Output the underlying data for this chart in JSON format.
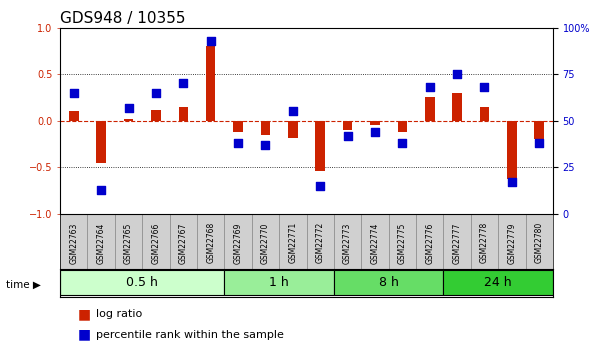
{
  "title": "GDS948 / 10355",
  "samples": [
    "GSM22763",
    "GSM22764",
    "GSM22765",
    "GSM22766",
    "GSM22767",
    "GSM22768",
    "GSM22769",
    "GSM22770",
    "GSM22771",
    "GSM22772",
    "GSM22773",
    "GSM22774",
    "GSM22775",
    "GSM22776",
    "GSM22777",
    "GSM22778",
    "GSM22779",
    "GSM22780"
  ],
  "log_ratio": [
    0.1,
    -0.45,
    0.02,
    0.12,
    0.15,
    0.8,
    -0.12,
    -0.15,
    -0.18,
    -0.54,
    -0.1,
    -0.05,
    -0.12,
    0.25,
    0.3,
    0.15,
    -0.62,
    -0.2
  ],
  "percentile": [
    0.65,
    0.13,
    0.57,
    0.65,
    0.7,
    0.93,
    0.38,
    0.37,
    0.55,
    0.15,
    0.42,
    0.44,
    0.38,
    0.68,
    0.75,
    0.68,
    0.17,
    0.38
  ],
  "groups": [
    {
      "label": "0.5 h",
      "start": 0,
      "end": 6,
      "color": "#ccffcc"
    },
    {
      "label": "1 h",
      "start": 6,
      "end": 10,
      "color": "#99ee99"
    },
    {
      "label": "8 h",
      "start": 10,
      "end": 14,
      "color": "#66dd66"
    },
    {
      "label": "24 h",
      "start": 14,
      "end": 18,
      "color": "#33cc33"
    }
  ],
  "bar_color": "#cc2200",
  "dot_color": "#0000cc",
  "yticks_left": [
    -1,
    -0.5,
    0,
    0.5,
    1
  ],
  "yticks_right": [
    0,
    25,
    50,
    75,
    100
  ],
  "ylim_left": [
    -1,
    1
  ],
  "ylim_right": [
    0,
    100
  ],
  "hline_color": "#cc2200",
  "dotline_color": "black",
  "bg_color": "#ffffff",
  "sample_box_color": "#d0d0d0",
  "title_fontsize": 11,
  "tick_fontsize": 7,
  "label_fontsize": 8,
  "group_label_fontsize": 9
}
